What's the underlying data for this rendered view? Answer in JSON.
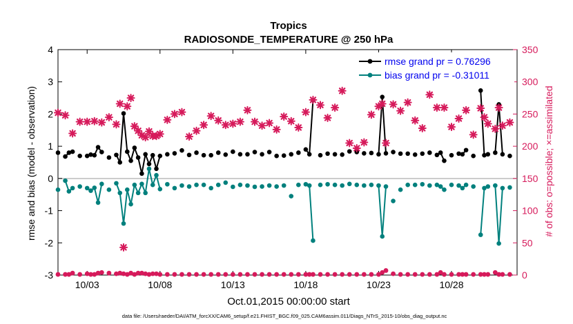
{
  "chart_data": {
    "type": "line",
    "title": "Tropics",
    "subtitle": "RADIOSONDE_TEMPERATURE @ 250 hPa",
    "xlabel": "Oct.01,2015 00:00:00 start",
    "ylabel": "rmse and bias (model - observation)",
    "y2label": "# of obs: o=possible; ×=assimilated",
    "footer": "data file: /Users/raeder/DAI/ATM_forcXX/CAM6_setup/f.e21.FHIST_BGC.f09_025.CAM6assim.011/Diags_NTrS_2015-10/obs_diag_output.nc",
    "xlim": [
      1,
      32.5
    ],
    "ylim": [
      -3,
      4
    ],
    "y2lim": [
      0,
      350
    ],
    "xticks": [
      {
        "value": 3,
        "label": "10/03"
      },
      {
        "value": 8,
        "label": "10/08"
      },
      {
        "value": 13,
        "label": "10/13"
      },
      {
        "value": 18,
        "label": "10/18"
      },
      {
        "value": 23,
        "label": "10/23"
      },
      {
        "value": 28,
        "label": "10/28"
      }
    ],
    "yticks": [
      {
        "value": 4,
        "label": "4"
      },
      {
        "value": 3,
        "label": "3"
      },
      {
        "value": 2,
        "label": "2"
      },
      {
        "value": 1,
        "label": "1"
      },
      {
        "value": 0,
        "label": "0"
      },
      {
        "value": -1,
        "label": "-1"
      },
      {
        "value": -2,
        "label": "-2"
      },
      {
        "value": -3,
        "label": "-3"
      }
    ],
    "y2ticks": [
      {
        "value": 350,
        "label": "350"
      },
      {
        "value": 300,
        "label": "300"
      },
      {
        "value": 250,
        "label": "250"
      },
      {
        "value": 200,
        "label": "200"
      },
      {
        "value": 150,
        "label": "150"
      },
      {
        "value": 100,
        "label": "100"
      },
      {
        "value": 50,
        "label": "50"
      },
      {
        "value": 0,
        "label": "0"
      }
    ],
    "colors": {
      "rmse": "#000000",
      "bias": "#00807d",
      "obs": "#d61a5b",
      "legend_text": "#0000ee",
      "zero_line": "#bbbbbb"
    },
    "legend": {
      "placement": "top-right",
      "entries": [
        "rmse grand pr = 0.76296",
        "bias grand pr = -0.31011"
      ]
    },
    "series": [
      {
        "name": "rmse",
        "x": [
          1.0,
          1.5,
          1.75,
          2.0,
          2.5,
          3.0,
          3.25,
          3.5,
          3.75,
          4.0,
          4.5,
          5.0,
          5.25,
          5.5,
          5.75,
          6.0,
          6.25,
          6.5,
          6.75,
          7.0,
          7.25,
          7.5,
          7.75,
          8.0,
          8.5,
          9.0,
          9.5,
          10.0,
          10.5,
          11.0,
          11.5,
          12.0,
          12.5,
          13.0,
          13.5,
          14.0,
          14.5,
          15.0,
          15.5,
          16.0,
          16.5,
          17.0,
          17.5,
          18.0,
          18.25,
          18.5,
          19.0,
          19.5,
          20.0,
          20.5,
          21.0,
          21.5,
          22.0,
          22.5,
          23.0,
          23.25,
          23.5,
          24.0,
          24.5,
          25.0,
          25.5,
          26.0,
          26.5,
          27.0,
          27.25,
          27.5,
          28.0,
          28.5,
          28.75,
          29.0,
          29.5,
          30.0,
          30.25,
          30.5,
          31.0,
          31.25,
          31.5,
          32.0
        ],
        "values": [
          0.8,
          0.68,
          0.8,
          0.83,
          0.7,
          0.7,
          0.74,
          0.72,
          0.97,
          0.82,
          0.65,
          0.73,
          0.5,
          2.02,
          0.83,
          0.55,
          0.95,
          0.65,
          0.15,
          0.75,
          0.45,
          0.72,
          0.3,
          0.7,
          0.75,
          0.78,
          0.87,
          0.73,
          0.8,
          0.72,
          0.72,
          0.8,
          0.74,
          0.83,
          0.75,
          0.75,
          0.82,
          0.75,
          0.82,
          0.7,
          0.71,
          0.75,
          0.8,
          0.9,
          0.75,
          2.43,
          0.72,
          0.77,
          0.75,
          0.74,
          0.84,
          0.82,
          0.78,
          0.79,
          0.75,
          2.53,
          0.78,
          0.82,
          0.77,
          0.77,
          0.74,
          0.77,
          0.8,
          0.73,
          0.8,
          0.55,
          0.72,
          0.77,
          0.75,
          0.88,
          0.7,
          2.73,
          0.72,
          0.75,
          0.8,
          2.3,
          0.75,
          0.7
        ]
      },
      {
        "name": "bias",
        "x": [
          1.0,
          1.5,
          1.75,
          2.0,
          2.5,
          3.0,
          3.25,
          3.5,
          3.75,
          4.0,
          4.5,
          5.0,
          5.25,
          5.5,
          5.75,
          6.0,
          6.25,
          6.5,
          6.75,
          7.0,
          7.25,
          7.5,
          7.75,
          8.0,
          8.5,
          9.0,
          9.5,
          10.0,
          10.5,
          11.0,
          11.5,
          12.0,
          12.5,
          13.0,
          13.5,
          14.0,
          14.5,
          15.0,
          15.5,
          16.0,
          16.5,
          17.0,
          17.5,
          18.0,
          18.25,
          18.5,
          19.0,
          19.5,
          20.0,
          20.5,
          21.0,
          21.5,
          22.0,
          22.5,
          23.0,
          23.25,
          23.5,
          24.0,
          24.5,
          25.0,
          25.5,
          26.0,
          26.5,
          27.0,
          27.25,
          27.5,
          28.0,
          28.5,
          28.75,
          29.0,
          29.5,
          30.0,
          30.25,
          30.5,
          31.0,
          31.25,
          31.5,
          32.0
        ],
        "values": [
          -0.35,
          -0.07,
          -0.4,
          -0.3,
          -0.25,
          -0.3,
          -0.38,
          -0.29,
          -0.75,
          -0.17,
          -0.35,
          -0.15,
          -0.45,
          -1.4,
          -0.35,
          -0.8,
          -0.2,
          -0.45,
          -0.17,
          -0.45,
          0.3,
          -0.2,
          0.1,
          -0.33,
          -0.18,
          -0.3,
          -0.22,
          -0.25,
          -0.2,
          -0.2,
          -0.3,
          -0.2,
          -0.13,
          -0.26,
          -0.2,
          -0.22,
          -0.26,
          -0.25,
          -0.22,
          -0.25,
          -0.22,
          -0.55,
          -0.2,
          -0.18,
          -0.22,
          -1.93,
          -0.2,
          -0.18,
          -0.2,
          -0.22,
          -0.17,
          -0.2,
          -0.22,
          -0.2,
          -0.22,
          -1.8,
          -0.25,
          -0.7,
          -0.35,
          -0.2,
          -0.2,
          -0.18,
          -0.22,
          -0.2,
          -0.25,
          -0.35,
          -0.2,
          -0.22,
          -0.3,
          -0.2,
          -0.25,
          -1.75,
          -0.3,
          -0.25,
          -0.22,
          -2.02,
          -0.3,
          -0.28
        ]
      },
      {
        "name": "possible",
        "x": [
          1.0,
          1.5,
          1.75,
          2.0,
          2.5,
          3.0,
          3.25,
          3.5,
          3.75,
          4.0,
          4.5,
          5.0,
          5.25,
          5.5,
          5.75,
          6.0,
          6.25,
          6.5,
          6.75,
          7.0,
          7.25,
          7.5,
          7.75,
          8.0,
          8.5,
          9.0,
          9.5,
          10.0,
          10.5,
          11.0,
          11.5,
          12.0,
          12.5,
          13.0,
          13.5,
          14.0,
          14.5,
          15.0,
          15.5,
          16.0,
          16.5,
          17.0,
          17.5,
          18.0,
          18.25,
          18.5,
          19.0,
          19.5,
          20.0,
          20.5,
          21.0,
          21.5,
          22.0,
          22.5,
          23.0,
          23.25,
          23.5,
          24.0,
          24.5,
          25.0,
          25.5,
          26.0,
          26.5,
          27.0,
          27.25,
          27.5,
          28.0,
          28.5,
          28.75,
          29.0,
          29.5,
          30.0,
          30.25,
          30.5,
          31.0,
          31.25,
          31.5,
          32.0
        ],
        "values": [
          1,
          1,
          1,
          3,
          1,
          2,
          1,
          1,
          3,
          4,
          3,
          2,
          3,
          2,
          1,
          3,
          1,
          3,
          3,
          2,
          1,
          2,
          2,
          1,
          1,
          1,
          1,
          1,
          1,
          1,
          1,
          1,
          1,
          1,
          1,
          1,
          1,
          1,
          1,
          1,
          1,
          1,
          1,
          1,
          1,
          1,
          1,
          1,
          1,
          1,
          1,
          1,
          1,
          1,
          1,
          4,
          7,
          2,
          1,
          1,
          1,
          1,
          1,
          1,
          4,
          1,
          1,
          1,
          1,
          1,
          1,
          1,
          1,
          1,
          4,
          1,
          1,
          1
        ]
      },
      {
        "name": "assimilated",
        "x": [
          1.0,
          1.5,
          2.0,
          2.5,
          3.0,
          3.5,
          4.0,
          4.5,
          5.0,
          5.25,
          5.5,
          5.75,
          6.0,
          6.25,
          6.5,
          6.75,
          7.0,
          7.25,
          7.5,
          7.75,
          8.0,
          8.5,
          9.0,
          9.5,
          10.0,
          10.5,
          11.0,
          11.5,
          12.0,
          12.5,
          13.0,
          13.5,
          14.0,
          14.5,
          15.0,
          15.5,
          16.0,
          16.5,
          17.0,
          17.5,
          18.0,
          18.5,
          19.0,
          19.5,
          20.0,
          20.5,
          21.0,
          21.5,
          22.0,
          22.5,
          23.0,
          23.25,
          23.5,
          24.0,
          24.5,
          25.0,
          25.5,
          26.0,
          26.5,
          27.0,
          27.5,
          28.0,
          28.5,
          29.0,
          29.5,
          30.0,
          30.25,
          30.5,
          31.0,
          31.25,
          31.5,
          32.0
        ],
        "values": [
          252,
          248,
          220,
          238,
          238,
          239,
          237,
          245,
          234,
          266,
          43,
          262,
          275,
          231,
          224,
          217,
          214,
          223,
          216,
          216,
          219,
          241,
          250,
          253,
          215,
          224,
          233,
          247,
          240,
          233,
          235,
          238,
          256,
          238,
          232,
          236,
          226,
          246,
          239,
          229,
          253,
          272,
          264,
          244,
          260,
          286,
          205,
          197,
          206,
          249,
          262,
          266,
          205,
          265,
          255,
          268,
          240,
          228,
          280,
          260,
          260,
          230,
          243,
          256,
          218,
          259,
          245,
          235,
          227,
          260,
          232,
          237
        ]
      }
    ]
  }
}
